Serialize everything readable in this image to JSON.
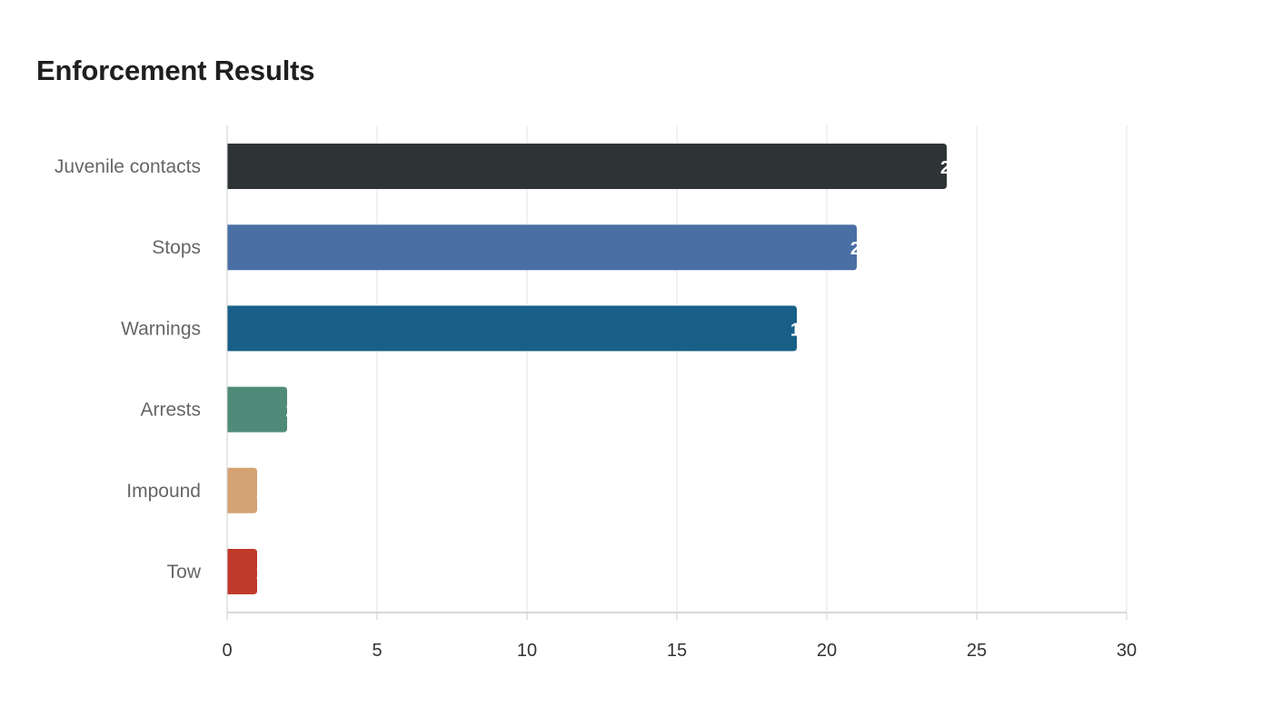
{
  "chart_data": {
    "type": "bar",
    "orientation": "horizontal",
    "title": "Enforcement Results",
    "xlabel": "",
    "ylabel": "",
    "categories": [
      "Juvenile contacts",
      "Stops",
      "Warnings",
      "Arrests",
      "Impound",
      "Tow"
    ],
    "values": [
      24,
      21,
      19,
      2,
      1,
      1
    ],
    "colors": [
      "#2e3436",
      "#4a6fa5",
      "#186088",
      "#4f8b78",
      "#d4a373",
      "#c0392b"
    ],
    "xlim": [
      0,
      30
    ],
    "x_ticks": [
      0,
      5,
      10,
      15,
      20,
      25,
      30
    ],
    "grid": true,
    "legend": "none"
  }
}
